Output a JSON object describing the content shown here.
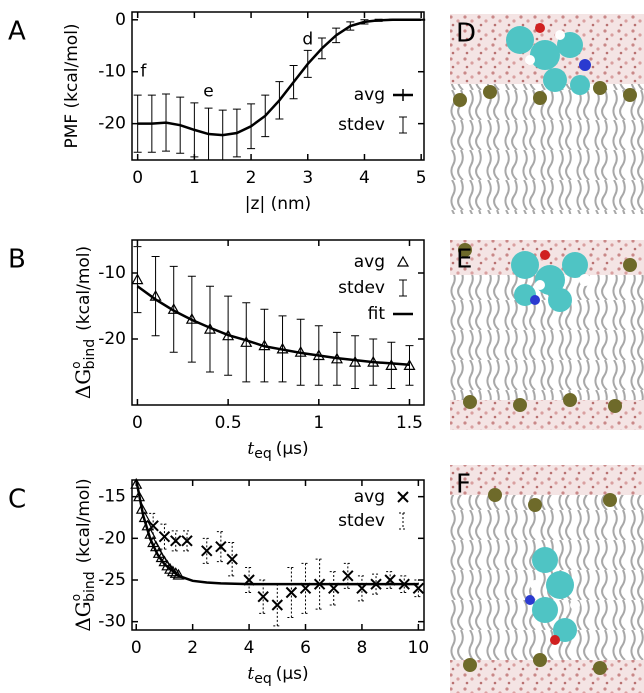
{
  "chart_data": [
    {
      "type": "line",
      "panel": "A",
      "ylabel": "PMF (kcal/mol)",
      "xlabel": "|z|  (nm)",
      "xlim": [
        -0.1,
        5.05
      ],
      "xticks": [
        0,
        1,
        2,
        3,
        4,
        5
      ],
      "ylim": [
        -27,
        1.5
      ],
      "yticks": [
        0,
        -10,
        -20
      ],
      "series": [
        {
          "name": "avg",
          "style": "line",
          "color": "#000000",
          "error_name": "stdev",
          "error_dash": false,
          "x": [
            0,
            0.25,
            0.5,
            0.75,
            1,
            1.25,
            1.5,
            1.75,
            2,
            2.25,
            2.5,
            2.75,
            3,
            3.25,
            3.5,
            3.75,
            4,
            4.25,
            4.5,
            4.75,
            5
          ],
          "values": [
            -20,
            -20,
            -19.8,
            -20.3,
            -21.2,
            -22,
            -22.2,
            -21.8,
            -20.5,
            -18.5,
            -15.5,
            -12,
            -8.5,
            -5.5,
            -3,
            -1.2,
            -0.4,
            -0.1,
            0,
            0,
            0
          ],
          "errors": [
            5.5,
            5.5,
            5.5,
            5.4,
            5.2,
            5,
            4.8,
            4.6,
            4.3,
            4,
            3.6,
            3.2,
            2.6,
            2,
            1.4,
            0.8,
            0.4,
            0.2,
            0.1,
            0.1,
            0.1
          ]
        }
      ],
      "annotations": [
        {
          "text": "f",
          "x": 0.1,
          "y": -10
        },
        {
          "text": "e",
          "x": 1.25,
          "y": -13.8
        },
        {
          "text": "d",
          "x": 3,
          "y": -3.8
        }
      ]
    },
    {
      "type": "line",
      "panel": "B",
      "ylabel": "ΔG",
      "ylabel_sup": "o",
      "ylabel_sub": "bind",
      "ylabel_unit": "(kcal/mol)",
      "xlabel": "t",
      "xlabel_sub": "eq",
      "xlabel_unit": "(µs)",
      "xlim": [
        -0.03,
        1.58
      ],
      "xticks": [
        0,
        0.5,
        1,
        1.5
      ],
      "ylim": [
        -30,
        -5
      ],
      "yticks": [
        -10,
        -20
      ],
      "series": [
        {
          "name": "avg",
          "style": "triangle",
          "color": "#000000",
          "error_name": "stdev",
          "error_dash": false,
          "x": [
            0,
            0.1,
            0.2,
            0.3,
            0.4,
            0.5,
            0.6,
            0.7,
            0.8,
            0.9,
            1,
            1.1,
            1.2,
            1.3,
            1.4,
            1.5
          ],
          "values": [
            -11,
            -13.5,
            -15.5,
            -17,
            -18.5,
            -19.5,
            -20.5,
            -21,
            -21.5,
            -22,
            -22.5,
            -23,
            -23.5,
            -23.5,
            -24,
            -24
          ],
          "errors": [
            5,
            6,
            6.5,
            6.5,
            6.5,
            6,
            6,
            5.5,
            5,
            5,
            4.5,
            4,
            4,
            3.5,
            3.5,
            3
          ]
        },
        {
          "name": "fit",
          "style": "line",
          "color": "#000000",
          "x": [
            0,
            0.1,
            0.2,
            0.3,
            0.4,
            0.5,
            0.6,
            0.7,
            0.8,
            0.9,
            1,
            1.1,
            1.2,
            1.3,
            1.4,
            1.5
          ],
          "values": [
            -12,
            -14,
            -15.7,
            -17.1,
            -18.3,
            -19.4,
            -20.2,
            -21.1,
            -21.6,
            -22.1,
            -22.5,
            -22.9,
            -23.2,
            -23.5,
            -23.7,
            -23.9
          ]
        }
      ]
    },
    {
      "type": "line",
      "panel": "C",
      "ylabel": "ΔG",
      "ylabel_sup": "o",
      "ylabel_sub": "bind",
      "ylabel_unit": "(kcal/mol)",
      "xlabel": "t",
      "xlabel_sub": "eq",
      "xlabel_unit": "(µs)",
      "xlim": [
        -0.15,
        10.2
      ],
      "xticks": [
        0,
        2,
        4,
        6,
        8,
        10
      ],
      "ylim": [
        -31,
        -13
      ],
      "yticks": [
        -15,
        -20,
        -25,
        -30
      ],
      "series": [
        {
          "name": "avg",
          "style": "cross",
          "color": "#000000",
          "error_name": "stdev",
          "error_dash": true,
          "x": [
            0.6,
            1,
            1.4,
            1.8,
            2.5,
            3,
            3.4,
            4,
            4.5,
            5,
            5.5,
            6,
            6.5,
            7,
            7.5,
            8,
            8.5,
            9,
            9.5,
            10
          ],
          "values": [
            -18.5,
            -19.8,
            -20.3,
            -20.3,
            -21.5,
            -21,
            -22.5,
            -25,
            -27,
            -28,
            -26.5,
            -26,
            -25.5,
            -26,
            -24.5,
            -26,
            -25.5,
            -25,
            -25.5,
            -26
          ],
          "errors": [
            1.5,
            1.5,
            1.2,
            1.2,
            1.5,
            1.8,
            2,
            1.5,
            2,
            2.5,
            3,
            3,
            3,
            2,
            1.5,
            1.5,
            1.2,
            1,
            1,
            1
          ]
        },
        {
          "style": "triangle",
          "color": "#000000",
          "x": [
            0,
            0.1,
            0.2,
            0.3,
            0.4,
            0.5,
            0.6,
            0.7,
            0.8,
            0.9,
            1,
            1.1,
            1.2,
            1.3,
            1.4,
            1.5
          ],
          "values": [
            -13.5,
            -15,
            -16.5,
            -17.5,
            -18.5,
            -19.5,
            -20.5,
            -21,
            -21.8,
            -22.3,
            -22.8,
            -23.3,
            -23.7,
            -24,
            -24.2,
            -24.4
          ]
        },
        {
          "style": "line",
          "color": "#000000",
          "x": [
            0,
            0.25,
            0.5,
            0.75,
            1,
            1.5,
            2,
            2.5,
            3,
            4,
            5,
            6,
            7,
            8,
            9,
            10
          ],
          "values": [
            -13,
            -17.3,
            -20.1,
            -21.9,
            -23.1,
            -24.5,
            -25.1,
            -25.3,
            -25.4,
            -25.5,
            -25.5,
            -25.5,
            -25.5,
            -25.5,
            -25.5,
            -25.5
          ]
        }
      ]
    }
  ],
  "images": [
    {
      "label": "D"
    },
    {
      "label": "E"
    },
    {
      "label": "F"
    }
  ]
}
